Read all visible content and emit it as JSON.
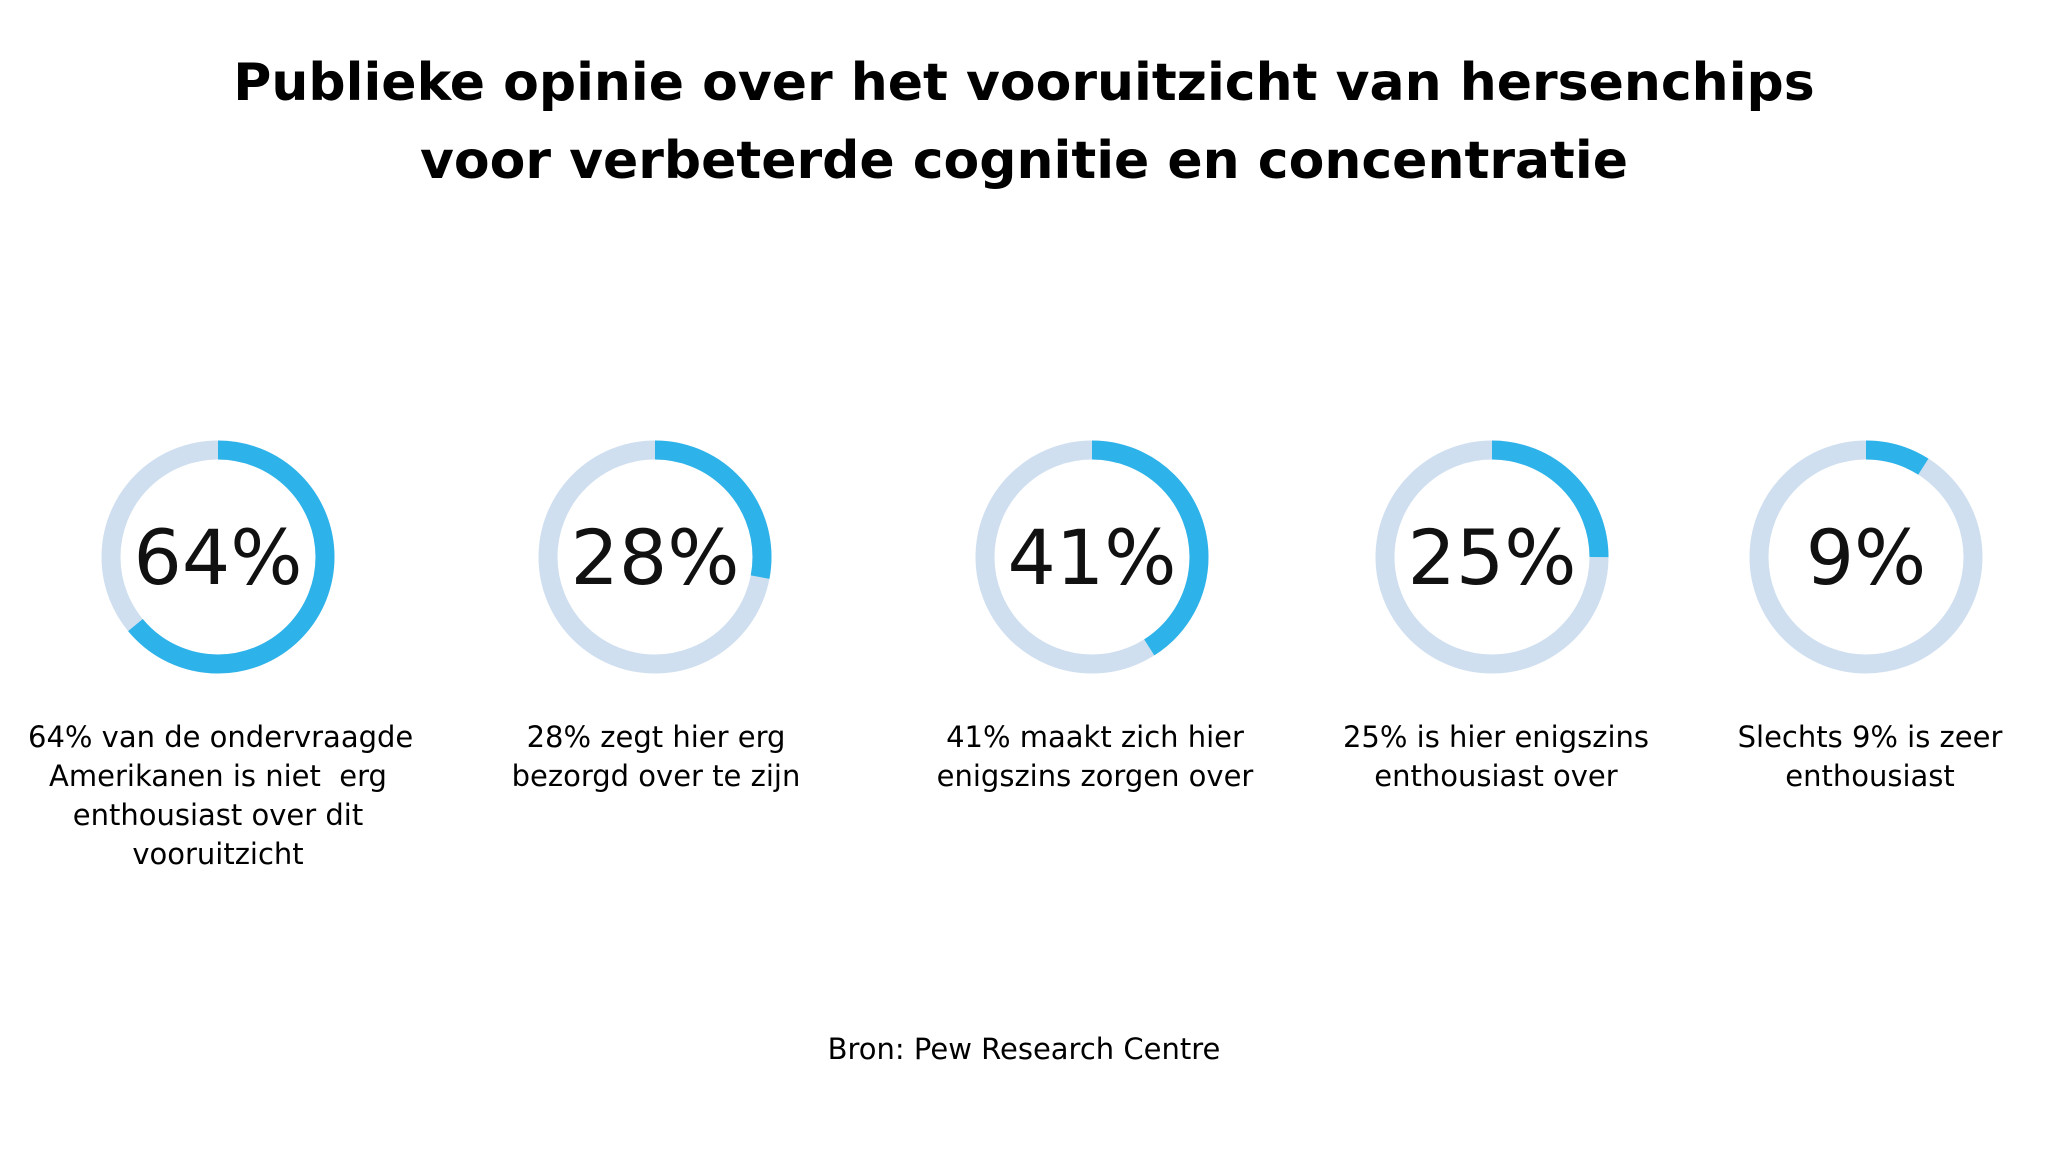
{
  "title": {
    "line1": "Publieke opinie over het vooruitzicht van hersenchips",
    "line2": "voor verbeterde cognitie en concentratie"
  },
  "colors": {
    "track": "#cfdff0",
    "fill": "#2db3ea",
    "text": "#111111"
  },
  "chart_data": {
    "type": "donut",
    "title": "Publieke opinie over het vooruitzicht van hersenchips voor verbeterde cognitie en concentratie",
    "items": [
      {
        "value": 64,
        "label": "64%",
        "caption": [
          "64% van de ondervraagde",
          "Amerikanen is niet  erg",
          "enthousiast over dit",
          "vooruitzicht"
        ]
      },
      {
        "value": 28,
        "label": "28%",
        "caption": [
          "28% zegt hier erg",
          "bezorgd over te zijn"
        ]
      },
      {
        "value": 41,
        "label": "41%",
        "caption": [
          "41% maakt zich hier",
          "enigszins zorgen over"
        ]
      },
      {
        "value": 25,
        "label": "25%",
        "caption": [
          "25% is hier enigszins",
          "enthousiast over"
        ]
      },
      {
        "value": 9,
        "label": "9%",
        "caption": [
          "Slechts 9% is zeer",
          "enthousiast"
        ]
      }
    ]
  },
  "source": "Bron: Pew Research Centre"
}
